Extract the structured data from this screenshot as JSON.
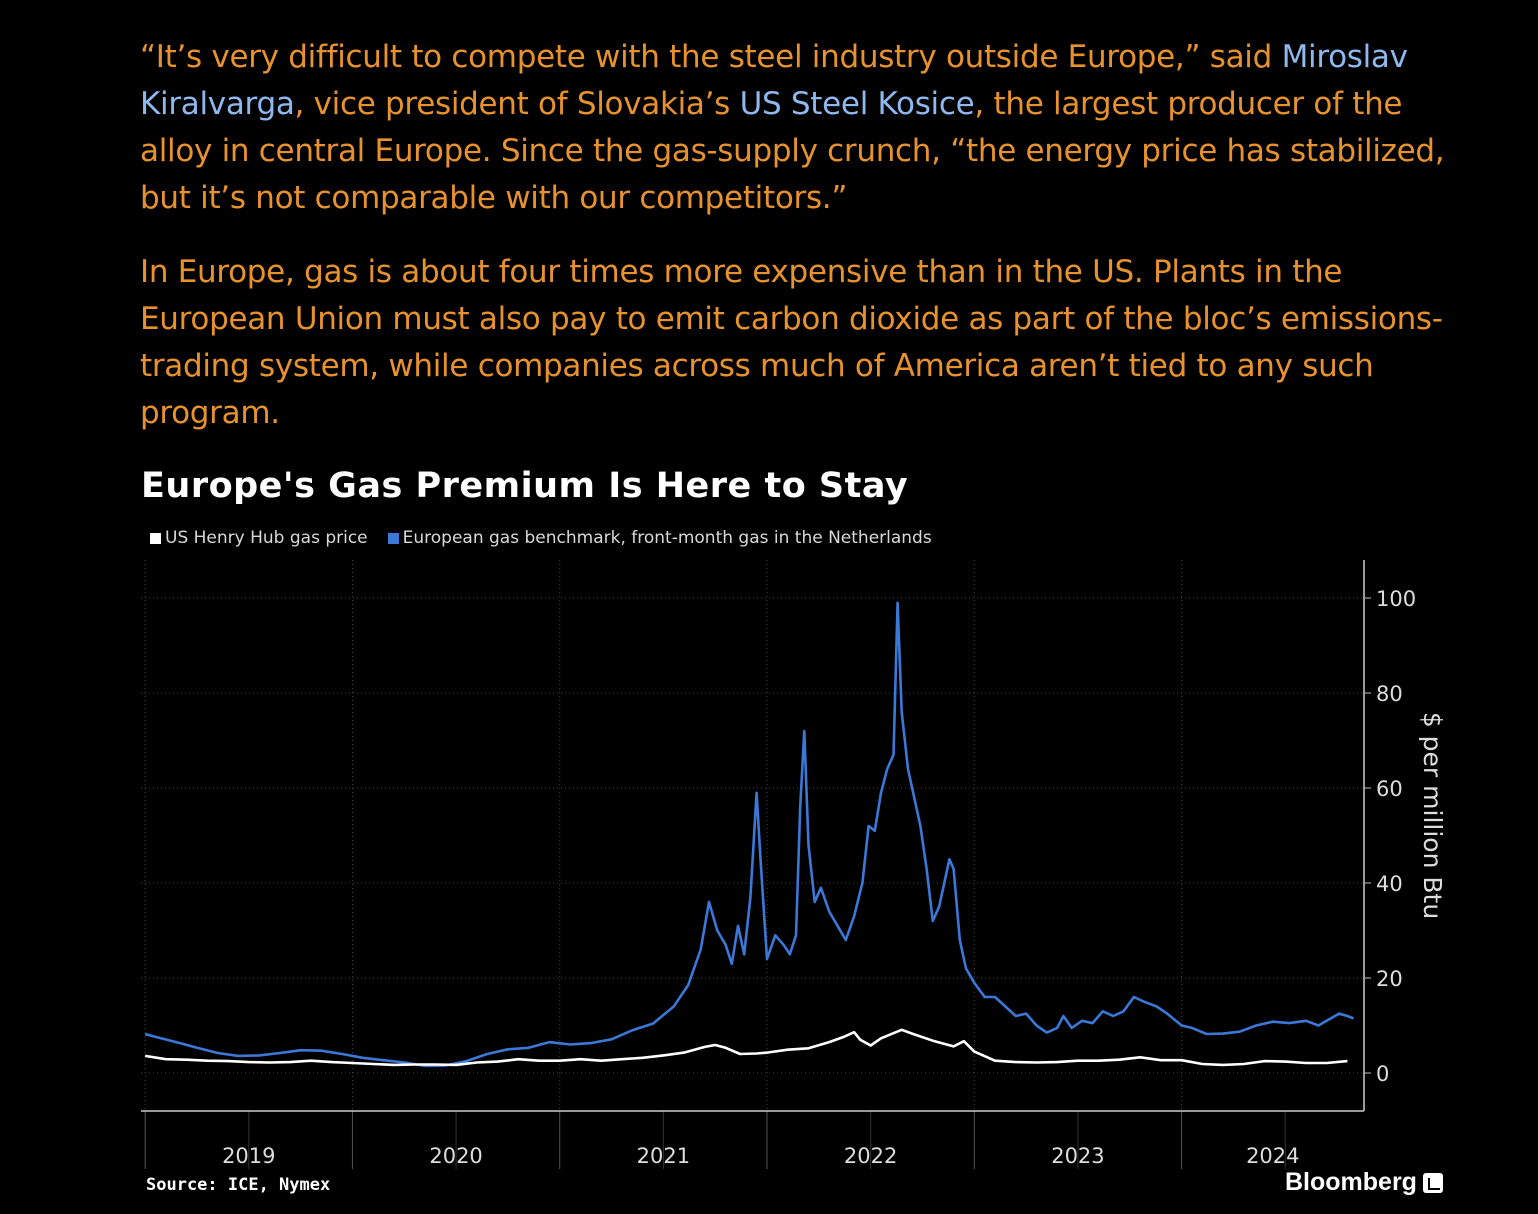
{
  "article": {
    "p1": {
      "t1": "“It’s very difficult to compete with the steel industry outside Europe,” said ",
      "link1": "Miroslav Kiralvarga",
      "t2": ", vice president of Slovakia’s ",
      "link2": "US Steel Kosice",
      "t3": ", the largest producer of the alloy in central Europe. Since the gas-supply crunch, “the energy price has stabilized, but it’s not comparable with our competitors.”"
    },
    "p2": "In Europe, gas is about four times more expensive than in the US. Plants in the European Union must also pay to emit carbon dioxide as part of the bloc’s emissions-trading system, while companies across much of America aren’t tied to any such program."
  },
  "chart_title": "Europe's Gas Premium Is Here to Stay",
  "legend": [
    {
      "label": "US Henry Hub gas price",
      "color": "#ffffff"
    },
    {
      "label": "European gas benchmark, front-month gas in the Netherlands",
      "color": "#3b78d8"
    }
  ],
  "source": "Source: ICE, Nymex",
  "brand": "Bloomberg",
  "chart_data": {
    "type": "line",
    "title": "Europe's Gas Premium Is Here to Stay",
    "ylabel": "$ per million Btu",
    "xlabel": "",
    "ylim": [
      -8,
      108
    ],
    "xlim": [
      2018.98,
      2024.88
    ],
    "yticks": [
      0,
      20,
      40,
      60,
      80,
      100
    ],
    "xtick_labels": [
      "2019",
      "2020",
      "2021",
      "2022",
      "2023",
      "2024"
    ],
    "grid": true,
    "legend_position": "top-left",
    "series": [
      {
        "name": "US Henry Hub gas price",
        "color": "#ffffff",
        "points": [
          [
            2019.0,
            3.6
          ],
          [
            2019.1,
            2.9
          ],
          [
            2019.2,
            2.8
          ],
          [
            2019.3,
            2.6
          ],
          [
            2019.4,
            2.5
          ],
          [
            2019.5,
            2.3
          ],
          [
            2019.6,
            2.2
          ],
          [
            2019.7,
            2.3
          ],
          [
            2019.8,
            2.6
          ],
          [
            2019.9,
            2.3
          ],
          [
            2020.0,
            2.1
          ],
          [
            2020.1,
            1.9
          ],
          [
            2020.2,
            1.7
          ],
          [
            2020.3,
            1.8
          ],
          [
            2020.4,
            1.8
          ],
          [
            2020.5,
            1.7
          ],
          [
            2020.6,
            2.2
          ],
          [
            2020.7,
            2.4
          ],
          [
            2020.8,
            2.9
          ],
          [
            2020.9,
            2.6
          ],
          [
            2021.0,
            2.6
          ],
          [
            2021.1,
            2.9
          ],
          [
            2021.2,
            2.6
          ],
          [
            2021.3,
            2.9
          ],
          [
            2021.4,
            3.2
          ],
          [
            2021.5,
            3.7
          ],
          [
            2021.6,
            4.3
          ],
          [
            2021.7,
            5.5
          ],
          [
            2021.75,
            5.9
          ],
          [
            2021.8,
            5.3
          ],
          [
            2021.87,
            4.0
          ],
          [
            2021.95,
            4.1
          ],
          [
            2022.0,
            4.3
          ],
          [
            2022.1,
            4.9
          ],
          [
            2022.2,
            5.2
          ],
          [
            2022.3,
            6.5
          ],
          [
            2022.37,
            7.6
          ],
          [
            2022.42,
            8.6
          ],
          [
            2022.45,
            7.0
          ],
          [
            2022.5,
            5.8
          ],
          [
            2022.55,
            7.3
          ],
          [
            2022.65,
            9.1
          ],
          [
            2022.7,
            8.3
          ],
          [
            2022.8,
            6.8
          ],
          [
            2022.9,
            5.6
          ],
          [
            2022.95,
            6.7
          ],
          [
            2023.0,
            4.5
          ],
          [
            2023.1,
            2.6
          ],
          [
            2023.2,
            2.3
          ],
          [
            2023.3,
            2.2
          ],
          [
            2023.4,
            2.3
          ],
          [
            2023.5,
            2.6
          ],
          [
            2023.6,
            2.6
          ],
          [
            2023.7,
            2.8
          ],
          [
            2023.8,
            3.3
          ],
          [
            2023.9,
            2.7
          ],
          [
            2024.0,
            2.7
          ],
          [
            2024.1,
            1.9
          ],
          [
            2024.2,
            1.7
          ],
          [
            2024.3,
            1.9
          ],
          [
            2024.4,
            2.5
          ],
          [
            2024.5,
            2.4
          ],
          [
            2024.6,
            2.1
          ],
          [
            2024.7,
            2.1
          ],
          [
            2024.8,
            2.5
          ]
        ]
      },
      {
        "name": "European gas benchmark, front-month gas in the Netherlands",
        "color": "#3b78d8",
        "points": [
          [
            2019.0,
            8.2
          ],
          [
            2019.05,
            7.6
          ],
          [
            2019.15,
            6.5
          ],
          [
            2019.25,
            5.3
          ],
          [
            2019.35,
            4.2
          ],
          [
            2019.45,
            3.6
          ],
          [
            2019.55,
            3.7
          ],
          [
            2019.65,
            4.2
          ],
          [
            2019.75,
            4.8
          ],
          [
            2019.85,
            4.7
          ],
          [
            2019.95,
            4.0
          ],
          [
            2020.05,
            3.2
          ],
          [
            2020.15,
            2.7
          ],
          [
            2020.25,
            2.2
          ],
          [
            2020.35,
            1.5
          ],
          [
            2020.45,
            1.6
          ],
          [
            2020.55,
            2.5
          ],
          [
            2020.65,
            4.0
          ],
          [
            2020.75,
            5.0
          ],
          [
            2020.85,
            5.3
          ],
          [
            2020.95,
            6.5
          ],
          [
            2021.05,
            6.0
          ],
          [
            2021.15,
            6.3
          ],
          [
            2021.25,
            7.1
          ],
          [
            2021.35,
            9.0
          ],
          [
            2021.45,
            10.4
          ],
          [
            2021.55,
            14.0
          ],
          [
            2021.62,
            18.5
          ],
          [
            2021.68,
            26.0
          ],
          [
            2021.72,
            36.0
          ],
          [
            2021.76,
            30.0
          ],
          [
            2021.8,
            27.0
          ],
          [
            2021.83,
            23.0
          ],
          [
            2021.86,
            31.0
          ],
          [
            2021.89,
            25.0
          ],
          [
            2021.92,
            37.0
          ],
          [
            2021.95,
            59.0
          ],
          [
            2021.97,
            44.0
          ],
          [
            2022.0,
            24.0
          ],
          [
            2022.04,
            29.0
          ],
          [
            2022.08,
            27.0
          ],
          [
            2022.11,
            25.0
          ],
          [
            2022.14,
            29.0
          ],
          [
            2022.16,
            56.0
          ],
          [
            2022.18,
            72.0
          ],
          [
            2022.2,
            48.0
          ],
          [
            2022.23,
            36.0
          ],
          [
            2022.26,
            39.0
          ],
          [
            2022.3,
            34.0
          ],
          [
            2022.34,
            31.0
          ],
          [
            2022.38,
            28.0
          ],
          [
            2022.42,
            33.0
          ],
          [
            2022.46,
            40.0
          ],
          [
            2022.49,
            52.0
          ],
          [
            2022.52,
            51.0
          ],
          [
            2022.55,
            59.0
          ],
          [
            2022.58,
            64.0
          ],
          [
            2022.61,
            67.0
          ],
          [
            2022.63,
            99.0
          ],
          [
            2022.65,
            76.0
          ],
          [
            2022.68,
            64.0
          ],
          [
            2022.71,
            58.0
          ],
          [
            2022.74,
            52.0
          ],
          [
            2022.77,
            43.0
          ],
          [
            2022.8,
            32.0
          ],
          [
            2022.83,
            35.0
          ],
          [
            2022.86,
            41.0
          ],
          [
            2022.88,
            45.0
          ],
          [
            2022.9,
            43.0
          ],
          [
            2022.93,
            28.0
          ],
          [
            2022.96,
            22.0
          ],
          [
            2023.0,
            19.0
          ],
          [
            2023.05,
            16.0
          ],
          [
            2023.1,
            16.0
          ],
          [
            2023.15,
            14.0
          ],
          [
            2023.2,
            12.0
          ],
          [
            2023.25,
            12.5
          ],
          [
            2023.3,
            10.0
          ],
          [
            2023.35,
            8.5
          ],
          [
            2023.4,
            9.5
          ],
          [
            2023.43,
            12.0
          ],
          [
            2023.47,
            9.5
          ],
          [
            2023.52,
            11.0
          ],
          [
            2023.57,
            10.5
          ],
          [
            2023.62,
            13.0
          ],
          [
            2023.67,
            12.0
          ],
          [
            2023.72,
            13.0
          ],
          [
            2023.77,
            16.0
          ],
          [
            2023.82,
            15.0
          ],
          [
            2023.88,
            14.0
          ],
          [
            2023.93,
            12.5
          ],
          [
            2024.0,
            10.0
          ],
          [
            2024.05,
            9.5
          ],
          [
            2024.12,
            8.2
          ],
          [
            2024.2,
            8.3
          ],
          [
            2024.28,
            8.7
          ],
          [
            2024.36,
            10.0
          ],
          [
            2024.44,
            10.8
          ],
          [
            2024.52,
            10.5
          ],
          [
            2024.6,
            11.0
          ],
          [
            2024.66,
            10.0
          ],
          [
            2024.72,
            11.5
          ],
          [
            2024.76,
            12.5
          ],
          [
            2024.8,
            12.0
          ],
          [
            2024.83,
            11.5
          ]
        ]
      }
    ]
  }
}
